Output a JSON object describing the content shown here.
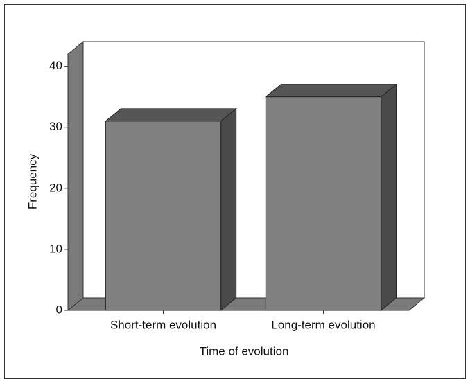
{
  "chart_data": {
    "type": "bar3d",
    "x_label": "Time of evolution",
    "y_label": "Frequency",
    "categories": [
      "Short-term evolution",
      "Long-term evolution"
    ],
    "values": [
      31,
      35
    ],
    "color": "#808080",
    "ylim": [
      0,
      42
    ],
    "yticks": [
      0,
      10,
      20,
      30,
      40
    ]
  }
}
